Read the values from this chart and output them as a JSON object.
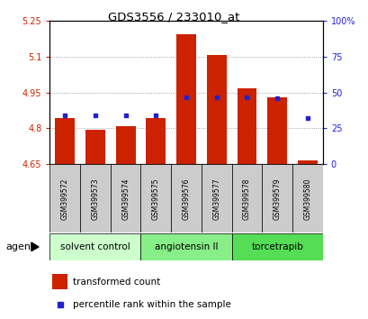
{
  "title": "GDS3556 / 233010_at",
  "samples": [
    "GSM399572",
    "GSM399573",
    "GSM399574",
    "GSM399575",
    "GSM399576",
    "GSM399577",
    "GSM399578",
    "GSM399579",
    "GSM399580"
  ],
  "bar_values": [
    4.845,
    4.795,
    4.81,
    4.845,
    5.195,
    5.108,
    4.968,
    4.93,
    4.665
  ],
  "blue_values": [
    4.855,
    4.855,
    4.855,
    4.855,
    4.93,
    4.93,
    4.93,
    4.925,
    4.845
  ],
  "bar_base": 4.65,
  "ylim_left": [
    4.65,
    5.25
  ],
  "ylim_right": [
    0,
    100
  ],
  "yticks_left": [
    4.65,
    4.8,
    4.95,
    5.1,
    5.25
  ],
  "yticks_right": [
    0,
    25,
    50,
    75,
    100
  ],
  "ytick_labels_left": [
    "4.65",
    "4.8",
    "4.95",
    "5.1",
    "5.25"
  ],
  "ytick_labels_right": [
    "0",
    "25",
    "50",
    "75",
    "100%"
  ],
  "bar_color": "#cc2200",
  "blue_color": "#2222cc",
  "groups": [
    {
      "label": "solvent control",
      "indices": [
        0,
        1,
        2
      ],
      "color": "#ccffcc"
    },
    {
      "label": "angiotensin II",
      "indices": [
        3,
        4,
        5
      ],
      "color": "#88ee88"
    },
    {
      "label": "torcetrapib",
      "indices": [
        6,
        7,
        8
      ],
      "color": "#55dd55"
    }
  ],
  "agent_label": "agent",
  "legend_transformed": "transformed count",
  "legend_percentile": "percentile rank within the sample",
  "grid_color": "#888888",
  "plot_bg": "#ffffff",
  "label_area_color": "#cccccc"
}
